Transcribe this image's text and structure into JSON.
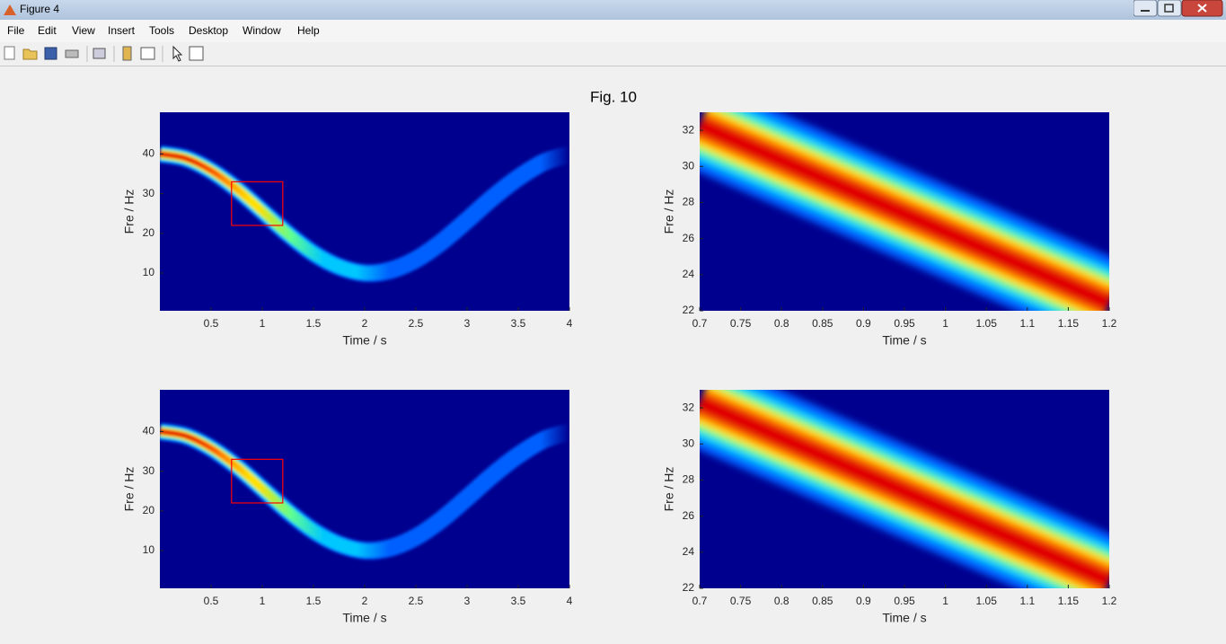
{
  "window": {
    "title": "Figure 4",
    "menu": [
      "File",
      "Edit",
      "View",
      "Insert",
      "Tools",
      "Desktop",
      "Window",
      "Help"
    ]
  },
  "figure_title": "Fig. 10",
  "chart_data": [
    {
      "type": "spectrogram",
      "xlabel": "Time / s",
      "ylabel": "Fre / Hz",
      "xlim": [
        0,
        4
      ],
      "ylim": [
        0.5,
        50.5
      ],
      "xticks": [
        0.5,
        1,
        1.5,
        2,
        2.5,
        3,
        3.5,
        4
      ],
      "yticks": [
        10,
        20,
        30,
        40
      ],
      "ridge": {
        "x": [
          0,
          0.25,
          0.5,
          0.75,
          1,
          1.25,
          1.5,
          1.75,
          2,
          2.25,
          2.5,
          2.75,
          3,
          3.25,
          3.5,
          3.75,
          4
        ],
        "y": [
          40,
          38.9,
          35.8,
          31.2,
          25.6,
          19.9,
          15,
          11.6,
          10,
          10.7,
          13.4,
          17.8,
          23.3,
          29,
          34,
          37.9,
          39.9
        ]
      },
      "fade": true,
      "zoom_box": {
        "x": [
          0.7,
          1.2
        ],
        "y": [
          22,
          33
        ],
        "color": "#ff0000"
      }
    },
    {
      "type": "spectrogram",
      "xlabel": "Time / s",
      "ylabel": "Fre / Hz",
      "xlim": [
        0.7,
        1.2
      ],
      "ylim": [
        22,
        33
      ],
      "xticks": [
        0.7,
        0.75,
        0.8,
        0.85,
        0.9,
        0.95,
        1,
        1.05,
        1.1,
        1.15,
        1.2
      ],
      "yticks": [
        22,
        24,
        26,
        28,
        30,
        32
      ],
      "ridge": {
        "x": [
          0.7,
          0.95,
          1.2
        ],
        "y": [
          32.3,
          27.35,
          22.4
        ]
      },
      "fade": false
    },
    {
      "type": "spectrogram",
      "xlabel": "Time / s",
      "ylabel": "Fre / Hz",
      "xlim": [
        0,
        4
      ],
      "ylim": [
        0.5,
        50.5
      ],
      "xticks": [
        0.5,
        1,
        1.5,
        2,
        2.5,
        3,
        3.5,
        4
      ],
      "yticks": [
        10,
        20,
        30,
        40
      ],
      "ridge": {
        "x": [
          0,
          0.25,
          0.5,
          0.75,
          1,
          1.25,
          1.5,
          1.75,
          2,
          2.25,
          2.5,
          2.75,
          3,
          3.25,
          3.5,
          3.75,
          4
        ],
        "y": [
          40,
          38.9,
          35.8,
          31.2,
          25.6,
          19.9,
          15,
          11.6,
          10,
          10.7,
          13.4,
          17.8,
          23.3,
          29,
          34,
          37.9,
          39.9
        ]
      },
      "fade": true,
      "zoom_box": {
        "x": [
          0.7,
          1.2
        ],
        "y": [
          22,
          33
        ],
        "color": "#ff0000"
      }
    },
    {
      "type": "spectrogram",
      "xlabel": "Time / s",
      "ylabel": "Fre / Hz",
      "xlim": [
        0.7,
        1.2
      ],
      "ylim": [
        22,
        33
      ],
      "xticks": [
        0.7,
        0.75,
        0.8,
        0.85,
        0.9,
        0.95,
        1,
        1.05,
        1.1,
        1.15,
        1.2
      ],
      "yticks": [
        22,
        24,
        26,
        28,
        30,
        32
      ],
      "ridge": {
        "x": [
          0.7,
          0.95,
          1.2
        ],
        "y": [
          32.3,
          27.35,
          22.4
        ]
      },
      "fade": false
    }
  ]
}
